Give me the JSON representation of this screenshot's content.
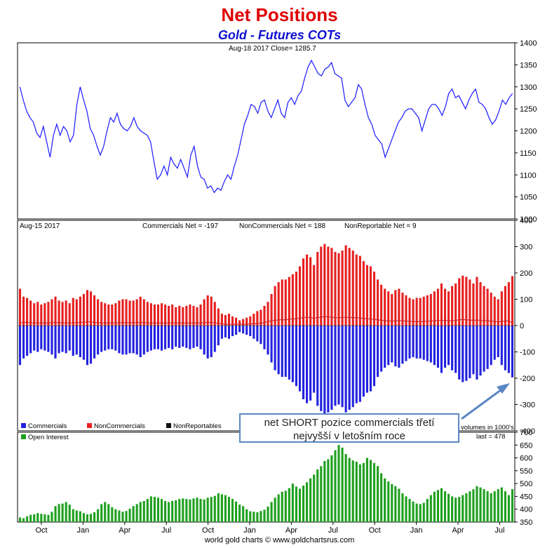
{
  "header": {
    "title": "Net Positions",
    "subtitle": "Gold - Futures COTs",
    "footer": "world gold charts © www.goldchartsrus.com"
  },
  "colors": {
    "price_line": "#1a1aff",
    "noncommercials": "#e62020",
    "commercials": "#2222e0",
    "nonreportables": "#c02020",
    "open_interest": "#1fa01f",
    "frame": "#000000",
    "annotation_border": "#5b86c4",
    "title": "#e00000",
    "subtitle": "#1010d0"
  },
  "annotation": {
    "line1": "net SHORT pozice commercials třetí",
    "line2": "nejvyšší v letošním roce"
  },
  "chart_data": [
    {
      "type": "line",
      "panel": "price",
      "info": "Aug-18  2017   Close= 1285.7",
      "ylim": [
        1000,
        1400
      ],
      "yticks": [
        1000,
        1050,
        1100,
        1150,
        1200,
        1250,
        1300,
        1350,
        1400
      ],
      "grid": false,
      "series": [
        {
          "values": [
            1300,
            1270,
            1245,
            1230,
            1220,
            1195,
            1185,
            1210,
            1175,
            1140,
            1190,
            1215,
            1190,
            1210,
            1200,
            1175,
            1190,
            1260,
            1300,
            1270,
            1245,
            1205,
            1190,
            1165,
            1145,
            1165,
            1200,
            1230,
            1220,
            1240,
            1215,
            1205,
            1200,
            1210,
            1230,
            1210,
            1200,
            1195,
            1190,
            1175,
            1130,
            1090,
            1100,
            1120,
            1100,
            1140,
            1125,
            1115,
            1135,
            1115,
            1095,
            1145,
            1165,
            1120,
            1095,
            1090,
            1070,
            1075,
            1060,
            1070,
            1065,
            1085,
            1100,
            1090,
            1120,
            1145,
            1180,
            1215,
            1235,
            1260,
            1255,
            1240,
            1265,
            1270,
            1245,
            1230,
            1250,
            1270,
            1240,
            1230,
            1265,
            1275,
            1260,
            1280,
            1290,
            1320,
            1345,
            1360,
            1345,
            1330,
            1325,
            1340,
            1345,
            1355,
            1330,
            1325,
            1320,
            1270,
            1255,
            1265,
            1275,
            1305,
            1295,
            1260,
            1230,
            1215,
            1190,
            1180,
            1170,
            1140,
            1160,
            1180,
            1200,
            1220,
            1230,
            1245,
            1250,
            1250,
            1240,
            1230,
            1200,
            1225,
            1250,
            1260,
            1260,
            1250,
            1235,
            1255,
            1285,
            1295,
            1275,
            1280,
            1265,
            1250,
            1270,
            1285,
            1295,
            1265,
            1260,
            1250,
            1230,
            1215,
            1225,
            1245,
            1270,
            1260,
            1275,
            1285
          ]
        }
      ]
    },
    {
      "type": "bar",
      "panel": "net positions",
      "info": {
        "date": "Aug-15  2017",
        "commercials": "Commercials Net = -197",
        "noncommercials": "NonCommercials Net = 188",
        "nonreportables": "NonReportable Net = 9"
      },
      "ylim": [
        -400,
        400
      ],
      "yticks": [
        -400,
        -300,
        -200,
        -100,
        0,
        100,
        200,
        300,
        400
      ],
      "legend": [
        "Commercials",
        "NonCommercials",
        "NonReportables"
      ],
      "legend_position": "bottom-left",
      "series": [
        {
          "name": "NonCommercials",
          "values": [
            140,
            110,
            105,
            95,
            85,
            90,
            80,
            85,
            90,
            100,
            110,
            95,
            90,
            95,
            85,
            105,
            100,
            110,
            120,
            135,
            130,
            115,
            100,
            90,
            85,
            80,
            80,
            85,
            95,
            100,
            100,
            95,
            95,
            100,
            110,
            100,
            90,
            85,
            80,
            80,
            85,
            80,
            75,
            80,
            70,
            75,
            70,
            75,
            80,
            75,
            70,
            80,
            100,
            115,
            110,
            90,
            65,
            45,
            40,
            45,
            35,
            30,
            20,
            25,
            30,
            35,
            45,
            55,
            60,
            75,
            90,
            120,
            150,
            165,
            175,
            175,
            185,
            195,
            205,
            225,
            255,
            270,
            260,
            230,
            280,
            300,
            310,
            300,
            295,
            280,
            275,
            285,
            305,
            295,
            285,
            270,
            265,
            245,
            230,
            225,
            205,
            175,
            155,
            140,
            130,
            120,
            135,
            140,
            125,
            115,
            105,
            100,
            105,
            105,
            110,
            115,
            120,
            130,
            140,
            160,
            140,
            130,
            150,
            160,
            180,
            190,
            185,
            175,
            160,
            185,
            165,
            150,
            140,
            125,
            110,
            100,
            130,
            150,
            165,
            188
          ]
        },
        {
          "name": "Commercials",
          "values": [
            -150,
            -125,
            -115,
            -105,
            -95,
            -100,
            -90,
            -95,
            -100,
            -110,
            -125,
            -105,
            -100,
            -105,
            -95,
            -115,
            -110,
            -120,
            -130,
            -150,
            -145,
            -125,
            -110,
            -100,
            -95,
            -90,
            -90,
            -95,
            -105,
            -110,
            -110,
            -105,
            -105,
            -110,
            -120,
            -110,
            -100,
            -95,
            -90,
            -90,
            -95,
            -90,
            -85,
            -90,
            -80,
            -85,
            -80,
            -85,
            -90,
            -85,
            -80,
            -90,
            -110,
            -125,
            -120,
            -100,
            -75,
            -50,
            -45,
            -50,
            -40,
            -35,
            -25,
            -30,
            -35,
            -40,
            -50,
            -60,
            -70,
            -90,
            -110,
            -140,
            -170,
            -185,
            -195,
            -195,
            -205,
            -215,
            -230,
            -250,
            -280,
            -295,
            -285,
            -255,
            -305,
            -325,
            -340,
            -330,
            -320,
            -305,
            -300,
            -310,
            -330,
            -320,
            -310,
            -295,
            -290,
            -270,
            -255,
            -250,
            -230,
            -195,
            -175,
            -160,
            -150,
            -140,
            -155,
            -160,
            -145,
            -135,
            -125,
            -120,
            -125,
            -125,
            -130,
            -135,
            -140,
            -150,
            -160,
            -180,
            -160,
            -150,
            -170,
            -180,
            -205,
            -215,
            -210,
            -200,
            -185,
            -205,
            -190,
            -175,
            -165,
            -150,
            -130,
            -120,
            -150,
            -170,
            -180,
            -197
          ]
        },
        {
          "name": "NonReportables",
          "values": [
            10,
            12,
            12,
            11,
            10,
            10,
            10,
            10,
            10,
            11,
            12,
            11,
            10,
            10,
            10,
            11,
            11,
            12,
            12,
            14,
            14,
            12,
            11,
            10,
            10,
            10,
            10,
            10,
            11,
            11,
            11,
            11,
            11,
            11,
            12,
            11,
            10,
            10,
            10,
            10,
            10,
            10,
            10,
            10,
            10,
            10,
            10,
            10,
            10,
            10,
            10,
            10,
            11,
            12,
            12,
            10,
            9,
            6,
            5,
            5,
            5,
            5,
            5,
            5,
            5,
            6,
            7,
            8,
            9,
            12,
            15,
            18,
            20,
            22,
            22,
            22,
            24,
            25,
            26,
            28,
            30,
            32,
            30,
            28,
            30,
            32,
            34,
            33,
            32,
            30,
            30,
            31,
            32,
            31,
            30,
            30,
            29,
            27,
            26,
            25,
            24,
            22,
            20,
            19,
            18,
            17,
            18,
            19,
            18,
            17,
            16,
            15,
            15,
            15,
            16,
            16,
            17,
            18,
            19,
            20,
            19,
            18,
            19,
            20,
            22,
            23,
            22,
            21,
            20,
            21,
            20,
            19,
            18,
            17,
            15,
            14,
            16,
            17,
            18,
            9
          ]
        }
      ]
    },
    {
      "type": "bar",
      "panel": "open interest",
      "legend": [
        "Open Interest"
      ],
      "units_note": "volumes in 1000's",
      "last_label": "last = 478",
      "ylim": [
        350,
        700
      ],
      "yticks": [
        350,
        400,
        450,
        500,
        550,
        600,
        650,
        700
      ],
      "categories_ticks": [
        "Oct",
        "Jan",
        "Apr",
        "Jul",
        "Oct",
        "Jan",
        "Apr",
        "Jul",
        "Oct",
        "Jan",
        "Apr",
        "Jul"
      ],
      "series": [
        {
          "name": "Open Interest",
          "values": [
            368,
            365,
            372,
            378,
            380,
            385,
            382,
            380,
            378,
            390,
            412,
            420,
            422,
            428,
            418,
            400,
            395,
            392,
            385,
            380,
            382,
            388,
            400,
            420,
            428,
            420,
            408,
            400,
            395,
            390,
            393,
            402,
            412,
            420,
            428,
            432,
            440,
            450,
            448,
            445,
            440,
            432,
            428,
            432,
            435,
            440,
            442,
            440,
            438,
            442,
            445,
            440,
            438,
            445,
            448,
            452,
            462,
            458,
            455,
            448,
            440,
            430,
            418,
            412,
            400,
            392,
            390,
            388,
            393,
            398,
            410,
            428,
            445,
            458,
            468,
            472,
            482,
            500,
            488,
            480,
            492,
            505,
            520,
            535,
            555,
            568,
            588,
            595,
            610,
            630,
            650,
            640,
            615,
            600,
            590,
            585,
            575,
            580,
            600,
            592,
            580,
            568,
            540,
            520,
            508,
            498,
            490,
            480,
            462,
            450,
            440,
            430,
            422,
            420,
            425,
            440,
            455,
            468,
            475,
            482,
            470,
            460,
            450,
            445,
            448,
            455,
            462,
            470,
            478,
            490,
            485,
            478,
            470,
            462,
            470,
            478,
            485,
            470,
            455,
            478
          ]
        }
      ]
    }
  ]
}
